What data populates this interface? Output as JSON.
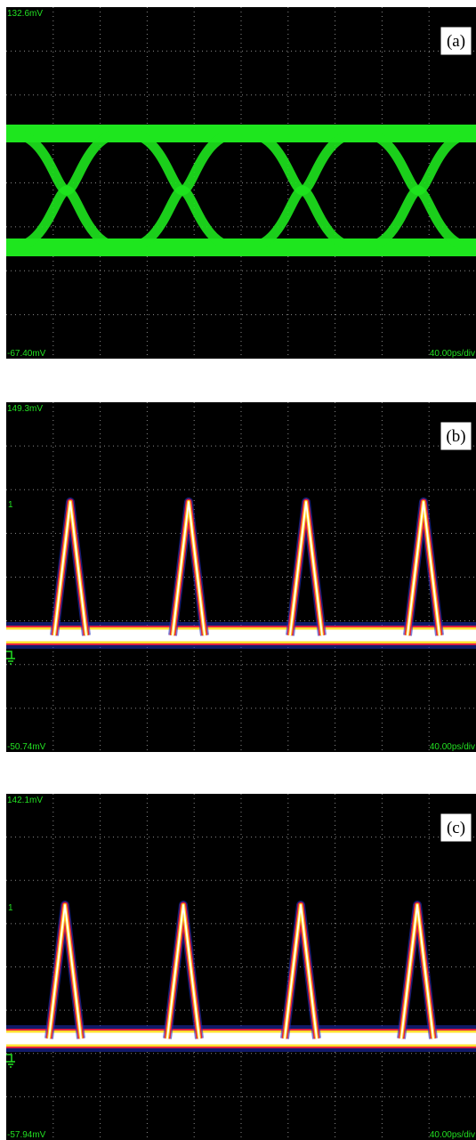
{
  "panels": [
    {
      "tag": "(a)",
      "top_label": "132.6mV",
      "bottom_left_label": "-67.40mV",
      "bottom_right_label": "40.00ps/div"
    },
    {
      "tag": "(b)",
      "top_label": "149.3mV",
      "bottom_left_label": "-50.74mV",
      "bottom_right_label": "40.00ps/div",
      "channel_marker": "1"
    },
    {
      "tag": "(c)",
      "top_label": "142.1mV",
      "bottom_left_label": "-57.94mV",
      "bottom_right_label": "40.00ps/div",
      "channel_marker": "1"
    }
  ]
}
